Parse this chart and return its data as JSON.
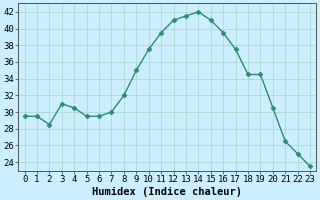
{
  "x": [
    0,
    1,
    2,
    3,
    4,
    5,
    6,
    7,
    8,
    9,
    10,
    11,
    12,
    13,
    14,
    15,
    16,
    17,
    18,
    19,
    20,
    21,
    22,
    23
  ],
  "y": [
    29.5,
    29.5,
    28.5,
    31.0,
    30.5,
    29.5,
    29.5,
    30.0,
    32.0,
    35.0,
    37.5,
    39.5,
    41.0,
    41.5,
    42.0,
    41.0,
    39.5,
    37.5,
    34.5,
    34.5,
    30.5,
    26.5,
    25.0,
    23.5
  ],
  "line_color": "#2e8b74",
  "marker": "D",
  "marker_size": 2.5,
  "bg_color": "#cceeff",
  "grid_color": "#aaddcc",
  "xlabel": "Humidex (Indice chaleur)",
  "ylim": [
    23,
    43
  ],
  "xlim": [
    -0.5,
    23.5
  ],
  "yticks": [
    24,
    26,
    28,
    30,
    32,
    34,
    36,
    38,
    40,
    42
  ],
  "xtick_labels": [
    "0",
    "1",
    "2",
    "3",
    "4",
    "5",
    "6",
    "7",
    "8",
    "9",
    "10",
    "11",
    "12",
    "13",
    "14",
    "15",
    "16",
    "17",
    "18",
    "19",
    "20",
    "21",
    "22",
    "23"
  ],
  "label_fontsize": 7.5,
  "tick_fontsize": 6.5
}
